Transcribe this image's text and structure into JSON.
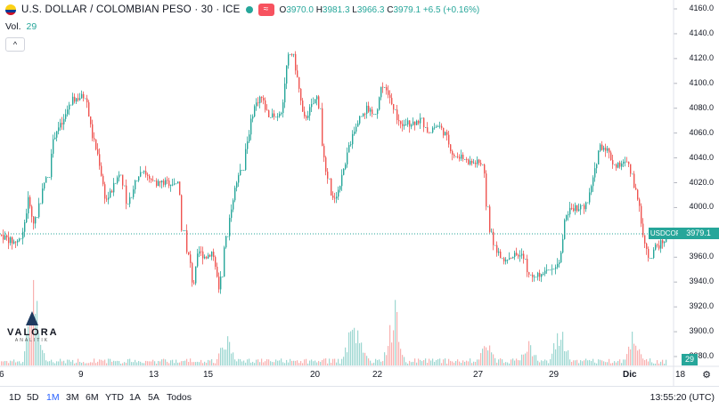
{
  "header": {
    "title": "U.S. DOLLAR / COLOMBIAN PESO · 30 · ICE",
    "compare_icon": "≈",
    "open_label": "O",
    "open": "3970.0",
    "high_label": "H",
    "high": "3981.3",
    "low_label": "L",
    "low": "3966.3",
    "close_label": "C",
    "close": "3979.1",
    "change": "+6.5 (+0.16%)",
    "up_color": "#26a69a",
    "down_color": "#ef5350"
  },
  "volume": {
    "label": "Vol.",
    "value": "29"
  },
  "logo": {
    "name": "VALORA",
    "subtitle": "ANALITIK"
  },
  "price_tag": {
    "symbol": "USDCOP",
    "value": "3979.1"
  },
  "volume_tag": "29",
  "yticks": [
    "4160.0",
    "4140.0",
    "4120.0",
    "4100.0",
    "4080.0",
    "4060.0",
    "4040.0",
    "4020.0",
    "4000.0",
    "3980.0",
    "3960.0",
    "3940.0",
    "3920.0",
    "3900.0",
    "3880.0"
  ],
  "xticks": [
    "6",
    "9",
    "13",
    "15",
    "20",
    "22",
    "27",
    "29",
    "Dic",
    "18"
  ],
  "timeframes": [
    "1D",
    "5D",
    "1M",
    "3M",
    "6M",
    "YTD",
    "1A",
    "5A",
    "Todos"
  ],
  "active_timeframe": "1M",
  "clock": "13:55:20 (UTC)",
  "chart_data": {
    "type": "candlestick",
    "title": "U.S. DOLLAR / COLOMBIAN PESO · 30 · ICE",
    "x": [
      "6",
      "9",
      "13",
      "15",
      "20",
      "22",
      "27",
      "29",
      "Dic",
      "18"
    ],
    "ylim": [
      3880,
      4165
    ],
    "last_price": 3979.1,
    "ohlc_last": {
      "open": 3970.0,
      "high": 3981.3,
      "low": 3966.3,
      "close": 3979.1
    },
    "path": [
      [
        0,
        3978
      ],
      [
        14,
        3972
      ],
      [
        24,
        3975
      ],
      [
        32,
        4010
      ],
      [
        36,
        3985
      ],
      [
        40,
        3995
      ],
      [
        46,
        4010
      ],
      [
        55,
        4040
      ],
      [
        62,
        4062
      ],
      [
        70,
        4068
      ],
      [
        78,
        4085
      ],
      [
        85,
        4088
      ],
      [
        96,
        4090
      ],
      [
        102,
        4060
      ],
      [
        110,
        4040
      ],
      [
        118,
        4005
      ],
      [
        126,
        4015
      ],
      [
        134,
        4030
      ],
      [
        142,
        3998
      ],
      [
        150,
        4020
      ],
      [
        160,
        4032
      ],
      [
        168,
        4020
      ],
      [
        200,
        4020
      ],
      [
        204,
        3968
      ],
      [
        212,
        3960
      ],
      [
        216,
        3935
      ],
      [
        222,
        3965
      ],
      [
        230,
        3960
      ],
      [
        238,
        3965
      ],
      [
        245,
        3935
      ],
      [
        252,
        3970
      ],
      [
        260,
        4005
      ],
      [
        268,
        4030
      ],
      [
        276,
        4050
      ],
      [
        284,
        4080
      ],
      [
        292,
        4090
      ],
      [
        300,
        4075
      ],
      [
        308,
        4072
      ],
      [
        316,
        4080
      ],
      [
        322,
        4120
      ],
      [
        328,
        4125
      ],
      [
        334,
        4100
      ],
      [
        340,
        4070
      ],
      [
        348,
        4080
      ],
      [
        356,
        4090
      ],
      [
        364,
        4030
      ],
      [
        372,
        4005
      ],
      [
        380,
        4015
      ],
      [
        388,
        4040
      ],
      [
        396,
        4060
      ],
      [
        404,
        4075
      ],
      [
        412,
        4080
      ],
      [
        420,
        4070
      ],
      [
        428,
        4100
      ],
      [
        436,
        4090
      ],
      [
        444,
        4070
      ],
      [
        452,
        4068
      ],
      [
        460,
        4068
      ],
      [
        470,
        4070
      ],
      [
        480,
        4063
      ],
      [
        492,
        4066
      ],
      [
        500,
        4058
      ],
      [
        508,
        4042
      ],
      [
        516,
        4040
      ],
      [
        528,
        4036
      ],
      [
        542,
        4036
      ],
      [
        546,
        3990
      ],
      [
        554,
        3970
      ],
      [
        562,
        3958
      ],
      [
        570,
        3960
      ],
      [
        578,
        3962
      ],
      [
        586,
        3960
      ],
      [
        594,
        3942
      ],
      [
        602,
        3945
      ],
      [
        610,
        3950
      ],
      [
        618,
        3950
      ],
      [
        628,
        3955
      ],
      [
        634,
        3995
      ],
      [
        642,
        4000
      ],
      [
        650,
        4000
      ],
      [
        658,
        4002
      ],
      [
        666,
        4025
      ],
      [
        672,
        4050
      ],
      [
        680,
        4048
      ],
      [
        688,
        4035
      ],
      [
        696,
        4035
      ],
      [
        704,
        4035
      ],
      [
        712,
        4015
      ],
      [
        718,
        3995
      ],
      [
        724,
        3965
      ],
      [
        728,
        3960
      ],
      [
        734,
        3968
      ],
      [
        740,
        3970
      ],
      [
        748,
        3976
      ]
    ],
    "volume_spikes": [
      [
        38,
        112
      ],
      [
        254,
        40
      ],
      [
        394,
        50
      ],
      [
        400,
        56
      ],
      [
        442,
        80
      ],
      [
        546,
        30
      ],
      [
        592,
        34
      ],
      [
        628,
        50
      ],
      [
        712,
        50
      ]
    ]
  }
}
